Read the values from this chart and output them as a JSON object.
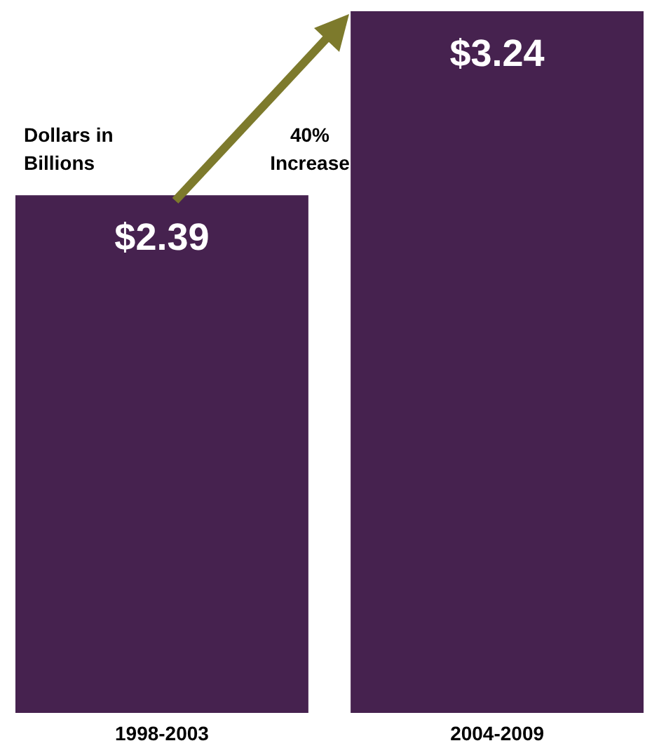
{
  "chart_data": {
    "type": "bar",
    "categories": [
      "1998-2003",
      "2004-2009"
    ],
    "values": [
      2.39,
      3.24
    ],
    "color": "#46224f",
    "value_labels": [
      "$2.39",
      "$3.24"
    ],
    "annotations": [
      "Dollars in Billions",
      "40% Increase"
    ]
  }
}
